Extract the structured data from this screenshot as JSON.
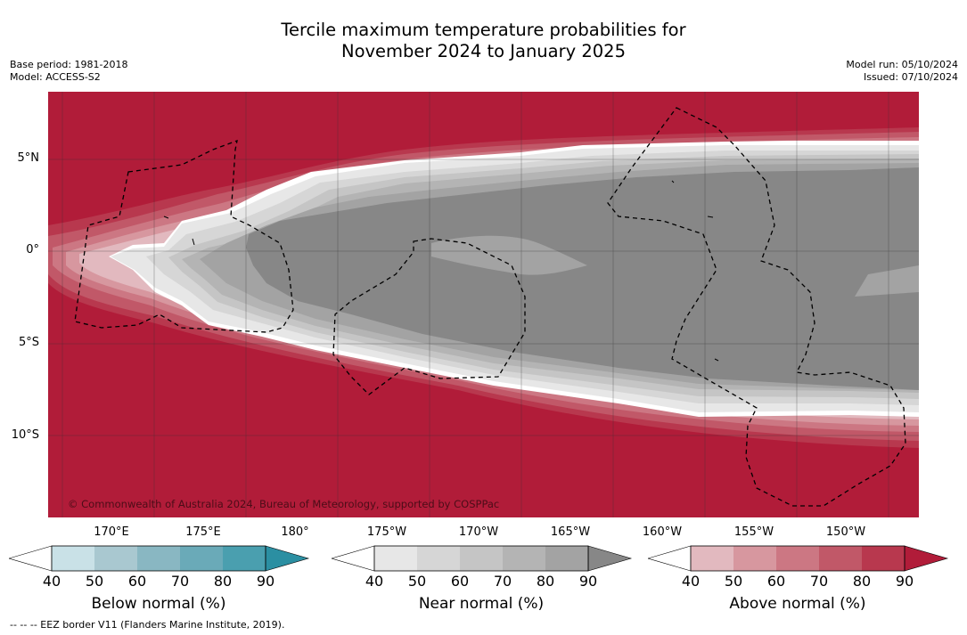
{
  "title": {
    "line1": "Tercile maximum temperature probabilities for",
    "line2": "November 2024 to January 2025"
  },
  "meta": {
    "base_period": "Base period: 1981-2018",
    "model": "Model: ACCESS-S2",
    "model_run": "Model run: 05/10/2024",
    "issued": "Issued: 07/10/2024"
  },
  "map": {
    "latitude_labels": [
      "5°N",
      "0°",
      "5°S",
      "10°S"
    ],
    "longitude_labels": [
      "170°E",
      "175°E",
      "180°",
      "175°W",
      "170°W",
      "165°W",
      "160°W",
      "155°W",
      "150°W"
    ],
    "copyright": "© Commonwealth of Australia 2024, Bureau of Meteorology, supported by COSPPac",
    "colors": {
      "above_90": "#b11c39",
      "near_90": "#878787",
      "near_80": "#a3a3a3",
      "near_70": "#b4b4b4",
      "near_60": "#c5c5c5",
      "near_50": "#d6d6d6",
      "near_40": "#e7e7e7"
    }
  },
  "colorbars": [
    {
      "title": "Below normal (%)",
      "ticks": [
        "40",
        "50",
        "60",
        "70",
        "80",
        "90"
      ],
      "colors": [
        "#ffffff",
        "#c9e1e7",
        "#a9c8d0",
        "#89b7c2",
        "#6aaab8",
        "#4a9faf",
        "#2b8fa2"
      ]
    },
    {
      "title": "Near normal (%)",
      "ticks": [
        "40",
        "50",
        "60",
        "70",
        "80",
        "90"
      ],
      "colors": [
        "#ffffff",
        "#e7e7e7",
        "#d6d6d6",
        "#c5c5c5",
        "#b4b4b4",
        "#a3a3a3",
        "#878787"
      ]
    },
    {
      "title": "Above normal (%)",
      "ticks": [
        "40",
        "50",
        "60",
        "70",
        "80",
        "90"
      ],
      "colors": [
        "#ffffff",
        "#e2b9bf",
        "#d7979f",
        "#cc7783",
        "#c15868",
        "#b8384e",
        "#b11c39"
      ]
    }
  ],
  "footnote": "--  --  -- EEZ border V11 (Flanders Marine Institute, 2019)."
}
